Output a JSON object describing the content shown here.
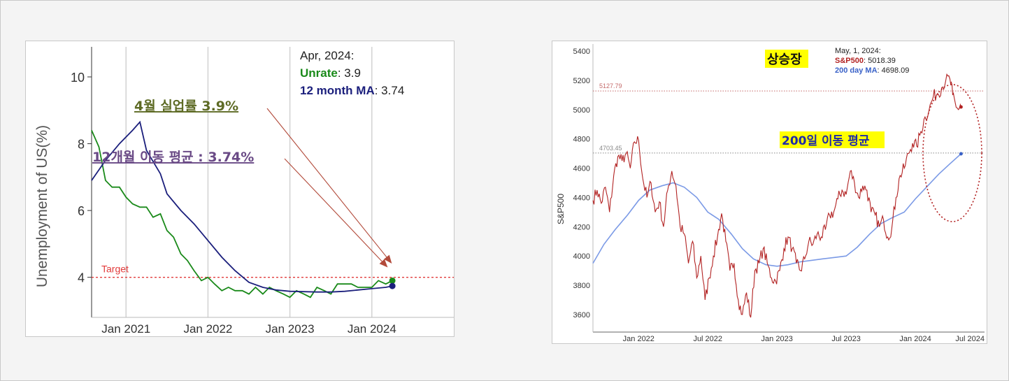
{
  "left_chart": {
    "chart_data": {
      "type": "line",
      "ylabel": "Unemployment of US(%)",
      "y_ticks": [
        4,
        6,
        8,
        10
      ],
      "ylim": [
        2.8,
        10.9
      ],
      "x_ticks": [
        {
          "label": "Jan 2021",
          "x": 2021.0
        },
        {
          "label": "Jan 2022",
          "x": 2022.0
        },
        {
          "label": "Jan 2023",
          "x": 2023.0
        },
        {
          "label": "Jan 2024",
          "x": 2024.0
        }
      ],
      "xlim": [
        2020.58,
        2025.0
      ],
      "target": {
        "label": "Target",
        "value": 4.0
      },
      "series": [
        {
          "name": "Unrate",
          "color": "#1a8a1a",
          "points": [
            [
              2020.58,
              8.4
            ],
            [
              2020.67,
              7.9
            ],
            [
              2020.75,
              6.9
            ],
            [
              2020.83,
              6.7
            ],
            [
              2020.92,
              6.7
            ],
            [
              2021.0,
              6.4
            ],
            [
              2021.08,
              6.2
            ],
            [
              2021.17,
              6.1
            ],
            [
              2021.25,
              6.1
            ],
            [
              2021.33,
              5.8
            ],
            [
              2021.42,
              5.9
            ],
            [
              2021.5,
              5.4
            ],
            [
              2021.58,
              5.2
            ],
            [
              2021.67,
              4.7
            ],
            [
              2021.75,
              4.5
            ],
            [
              2021.83,
              4.2
            ],
            [
              2021.92,
              3.9
            ],
            [
              2022.0,
              4.0
            ],
            [
              2022.08,
              3.8
            ],
            [
              2022.17,
              3.6
            ],
            [
              2022.25,
              3.7
            ],
            [
              2022.33,
              3.6
            ],
            [
              2022.42,
              3.6
            ],
            [
              2022.5,
              3.5
            ],
            [
              2022.58,
              3.7
            ],
            [
              2022.67,
              3.5
            ],
            [
              2022.75,
              3.7
            ],
            [
              2022.83,
              3.6
            ],
            [
              2022.92,
              3.5
            ],
            [
              2023.0,
              3.4
            ],
            [
              2023.08,
              3.6
            ],
            [
              2023.17,
              3.5
            ],
            [
              2023.25,
              3.4
            ],
            [
              2023.33,
              3.7
            ],
            [
              2023.42,
              3.6
            ],
            [
              2023.5,
              3.5
            ],
            [
              2023.58,
              3.8
            ],
            [
              2023.67,
              3.8
            ],
            [
              2023.75,
              3.8
            ],
            [
              2023.83,
              3.7
            ],
            [
              2023.92,
              3.7
            ],
            [
              2024.0,
              3.7
            ],
            [
              2024.08,
              3.9
            ],
            [
              2024.17,
              3.8
            ],
            [
              2024.25,
              3.9
            ]
          ]
        },
        {
          "name": "12 month MA",
          "color": "#1b1f7c",
          "points": [
            [
              2020.58,
              6.9
            ],
            [
              2020.75,
              7.5
            ],
            [
              2020.92,
              8.0
            ],
            [
              2021.08,
              8.4
            ],
            [
              2021.17,
              8.65
            ],
            [
              2021.25,
              7.8
            ],
            [
              2021.42,
              7.1
            ],
            [
              2021.5,
              6.5
            ],
            [
              2021.67,
              6.0
            ],
            [
              2021.83,
              5.6
            ],
            [
              2022.0,
              5.1
            ],
            [
              2022.17,
              4.6
            ],
            [
              2022.33,
              4.2
            ],
            [
              2022.5,
              3.85
            ],
            [
              2022.67,
              3.7
            ],
            [
              2022.83,
              3.62
            ],
            [
              2023.0,
              3.58
            ],
            [
              2023.17,
              3.57
            ],
            [
              2023.33,
              3.56
            ],
            [
              2023.5,
              3.56
            ],
            [
              2023.67,
              3.58
            ],
            [
              2023.83,
              3.62
            ],
            [
              2024.0,
              3.66
            ],
            [
              2024.17,
              3.7
            ],
            [
              2024.25,
              3.74
            ]
          ]
        }
      ],
      "legend": {
        "date": "Apr, 2024:",
        "items": [
          {
            "name": "Unrate",
            "value": ": 3.9",
            "color": "#1a8a1a"
          },
          {
            "name": "12 month MA",
            "value": ": 3.74",
            "color": "#1b1f7c"
          }
        ]
      }
    },
    "annotations": {
      "unrate_note": "4월 실업률 3.9%",
      "ma_note": "12개월 이동 평균 : 3.74%"
    }
  },
  "right_chart": {
    "chart_data": {
      "type": "line",
      "ylabel": "S&P500",
      "y_ticks": [
        3600,
        3800,
        4000,
        4200,
        4400,
        4600,
        4800,
        5000,
        5200,
        5400
      ],
      "ylim": [
        3480,
        5410
      ],
      "x_ticks": [
        {
          "label": "Jan 2022",
          "x": 2022.0
        },
        {
          "label": "Jul 2022",
          "x": 2022.5
        },
        {
          "label": "Jan 2023",
          "x": 2023.0
        },
        {
          "label": "Jul 2023",
          "x": 2023.5
        },
        {
          "label": "Jan 2024",
          "x": 2024.0
        },
        {
          "label": "Jul 2024",
          "x": 2024.5
        }
      ],
      "xlim": [
        2021.67,
        2024.5
      ],
      "ref_lines": [
        {
          "label": "5127.79",
          "value": 5127.79,
          "color": "#c46a6a"
        },
        {
          "label": "4703.45",
          "value": 4703.45,
          "color": "#888888"
        }
      ],
      "series": [
        {
          "name": "S&P500",
          "color": "#b22222",
          "points": [
            [
              2021.67,
              4380
            ],
            [
              2021.7,
              4450
            ],
            [
              2021.73,
              4360
            ],
            [
              2021.76,
              4470
            ],
            [
              2021.79,
              4300
            ],
            [
              2021.82,
              4550
            ],
            [
              2021.85,
              4680
            ],
            [
              2021.88,
              4650
            ],
            [
              2021.91,
              4700
            ],
            [
              2021.94,
              4600
            ],
            [
              2021.97,
              4780
            ],
            [
              2022.0,
              4790
            ],
            [
              2022.03,
              4530
            ],
            [
              2022.06,
              4400
            ],
            [
              2022.09,
              4500
            ],
            [
              2022.12,
              4300
            ],
            [
              2022.15,
              4370
            ],
            [
              2022.18,
              4200
            ],
            [
              2022.21,
              4450
            ],
            [
              2022.24,
              4580
            ],
            [
              2022.27,
              4480
            ],
            [
              2022.3,
              4200
            ],
            [
              2022.33,
              4150
            ],
            [
              2022.36,
              3950
            ],
            [
              2022.39,
              4100
            ],
            [
              2022.42,
              3850
            ],
            [
              2022.45,
              4000
            ],
            [
              2022.48,
              3700
            ],
            [
              2022.51,
              3850
            ],
            [
              2022.54,
              4000
            ],
            [
              2022.57,
              4130
            ],
            [
              2022.6,
              4290
            ],
            [
              2022.63,
              4100
            ],
            [
              2022.66,
              3900
            ],
            [
              2022.69,
              3950
            ],
            [
              2022.72,
              3700
            ],
            [
              2022.75,
              3600
            ],
            [
              2022.78,
              3750
            ],
            [
              2022.81,
              3580
            ],
            [
              2022.84,
              3900
            ],
            [
              2022.87,
              3950
            ],
            [
              2022.9,
              4050
            ],
            [
              2022.93,
              3950
            ],
            [
              2022.96,
              3850
            ],
            [
              2022.99,
              3830
            ],
            [
              2023.02,
              3900
            ],
            [
              2023.05,
              4050
            ],
            [
              2023.08,
              4130
            ],
            [
              2023.11,
              4050
            ],
            [
              2023.14,
              3950
            ],
            [
              2023.17,
              3900
            ],
            [
              2023.2,
              3980
            ],
            [
              2023.23,
              4100
            ],
            [
              2023.26,
              4080
            ],
            [
              2023.29,
              4150
            ],
            [
              2023.32,
              4130
            ],
            [
              2023.35,
              4180
            ],
            [
              2023.38,
              4280
            ],
            [
              2023.41,
              4300
            ],
            [
              2023.44,
              4390
            ],
            [
              2023.47,
              4450
            ],
            [
              2023.5,
              4420
            ],
            [
              2023.53,
              4580
            ],
            [
              2023.56,
              4500
            ],
            [
              2023.59,
              4400
            ],
            [
              2023.62,
              4480
            ],
            [
              2023.65,
              4450
            ],
            [
              2023.68,
              4300
            ],
            [
              2023.71,
              4280
            ],
            [
              2023.74,
              4200
            ],
            [
              2023.77,
              4250
            ],
            [
              2023.8,
              4130
            ],
            [
              2023.83,
              4190
            ],
            [
              2023.86,
              4400
            ],
            [
              2023.89,
              4550
            ],
            [
              2023.92,
              4600
            ],
            [
              2023.95,
              4700
            ],
            [
              2023.98,
              4770
            ],
            [
              2024.01,
              4750
            ],
            [
              2024.04,
              4850
            ],
            [
              2024.07,
              4950
            ],
            [
              2024.1,
              5000
            ],
            [
              2024.13,
              5090
            ],
            [
              2024.16,
              5110
            ],
            [
              2024.19,
              5150
            ],
            [
              2024.22,
              5200
            ],
            [
              2024.25,
              5210
            ],
            [
              2024.27,
              5100
            ],
            [
              2024.29,
              5040
            ],
            [
              2024.31,
              5000
            ],
            [
              2024.33,
              5018.39
            ]
          ]
        },
        {
          "name": "200 day MA",
          "color": "#7b9ae6",
          "points": [
            [
              2021.67,
              3950
            ],
            [
              2021.75,
              4080
            ],
            [
              2021.83,
              4180
            ],
            [
              2021.92,
              4280
            ],
            [
              2022.0,
              4380
            ],
            [
              2022.08,
              4450
            ],
            [
              2022.17,
              4480
            ],
            [
              2022.25,
              4500
            ],
            [
              2022.33,
              4470
            ],
            [
              2022.42,
              4400
            ],
            [
              2022.5,
              4300
            ],
            [
              2022.58,
              4250
            ],
            [
              2022.67,
              4150
            ],
            [
              2022.75,
              4050
            ],
            [
              2022.83,
              3980
            ],
            [
              2022.92,
              3940
            ],
            [
              2023.0,
              3930
            ],
            [
              2023.08,
              3940
            ],
            [
              2023.17,
              3960
            ],
            [
              2023.25,
              3970
            ],
            [
              2023.33,
              3980
            ],
            [
              2023.42,
              3990
            ],
            [
              2023.5,
              4000
            ],
            [
              2023.58,
              4060
            ],
            [
              2023.67,
              4150
            ],
            [
              2023.75,
              4220
            ],
            [
              2023.83,
              4260
            ],
            [
              2023.92,
              4300
            ],
            [
              2024.0,
              4390
            ],
            [
              2024.08,
              4470
            ],
            [
              2024.17,
              4560
            ],
            [
              2024.25,
              4630
            ],
            [
              2024.33,
              4698.09
            ]
          ]
        }
      ],
      "legend": {
        "date": "May, 1, 2024:",
        "items": [
          {
            "name": "S&P500",
            "value": ": 5018.39",
            "color": "#b22222"
          },
          {
            "name": "200 day MA",
            "value": ": 4698.09",
            "color": "#3a62c8"
          }
        ]
      }
    },
    "annotations": {
      "bull_label": "상승장",
      "ma_label": "200일 이동 평균"
    }
  }
}
